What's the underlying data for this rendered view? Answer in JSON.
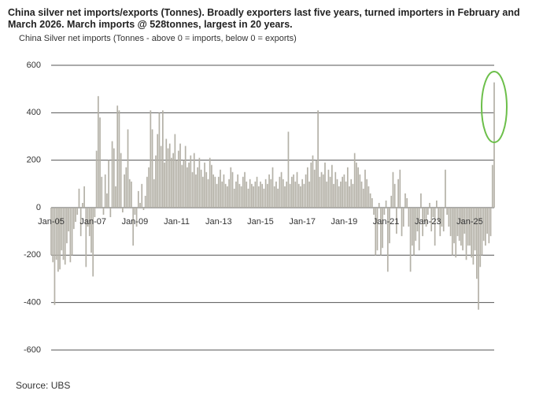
{
  "chart_data": {
    "type": "bar",
    "title": "China silver net imports/exports (Tonnes). Broadly exporters last five years, turned importers in February and March 2026. March imports @ 528tonnes, largest in 20 years.",
    "subtitle": "China Silver net imports (Tonnes - above 0 = imports, below 0 = exports)",
    "source": "Source: UBS",
    "color": "#b4b1a7",
    "grid": true,
    "ylim": [
      -600,
      600
    ],
    "yticks": [
      -600,
      -400,
      -200,
      0,
      200,
      400,
      600
    ],
    "categories": [
      "Jan-05",
      null,
      null,
      null,
      null,
      null,
      null,
      null,
      null,
      null,
      null,
      null,
      null,
      null,
      null,
      null,
      null,
      null,
      null,
      null,
      null,
      null,
      null,
      null,
      "Jan-07",
      null,
      null,
      null,
      null,
      null,
      null,
      null,
      null,
      null,
      null,
      null,
      null,
      null,
      null,
      null,
      null,
      null,
      null,
      null,
      null,
      null,
      null,
      null,
      "Jan-09",
      null,
      null,
      null,
      null,
      null,
      null,
      null,
      null,
      null,
      null,
      null,
      null,
      null,
      null,
      null,
      null,
      null,
      null,
      null,
      null,
      null,
      null,
      null,
      "Jan-11",
      null,
      null,
      null,
      null,
      null,
      null,
      null,
      null,
      null,
      null,
      null,
      null,
      null,
      null,
      null,
      null,
      null,
      null,
      null,
      null,
      null,
      null,
      null,
      "Jan-13",
      null,
      null,
      null,
      null,
      null,
      null,
      null,
      null,
      null,
      null,
      null,
      null,
      null,
      null,
      null,
      null,
      null,
      null,
      null,
      null,
      null,
      null,
      null,
      "Jan-15",
      null,
      null,
      null,
      null,
      null,
      null,
      null,
      null,
      null,
      null,
      null,
      null,
      null,
      null,
      null,
      null,
      null,
      null,
      null,
      null,
      null,
      null,
      null,
      "Jan-17",
      null,
      null,
      null,
      null,
      null,
      null,
      null,
      null,
      null,
      null,
      null,
      null,
      null,
      null,
      null,
      null,
      null,
      null,
      null,
      null,
      null,
      null,
      null,
      "Jan-19",
      null,
      null,
      null,
      null,
      null,
      null,
      null,
      null,
      null,
      null,
      null,
      null,
      null,
      null,
      null,
      null,
      null,
      null,
      null,
      null,
      null,
      null,
      null,
      "Jan-21",
      null,
      null,
      null,
      null,
      null,
      null,
      null,
      null,
      null,
      null,
      null,
      null,
      null,
      null,
      null,
      null,
      null,
      null,
      null,
      null,
      null,
      null,
      null,
      "Jan-23",
      null,
      null,
      null,
      null,
      null,
      null,
      null,
      null,
      null,
      null,
      null,
      null,
      null,
      null,
      null,
      null,
      null,
      null,
      null,
      null,
      null,
      null,
      null,
      "Jan-25",
      null,
      null,
      null,
      null,
      null,
      null,
      null,
      null,
      null,
      null,
      null,
      null,
      null,
      null
    ],
    "values": [
      -200,
      -230,
      -410,
      -220,
      -270,
      -260,
      -180,
      -220,
      -240,
      -150,
      -100,
      -230,
      -200,
      -90,
      -60,
      -30,
      80,
      -120,
      20,
      90,
      -250,
      -80,
      -120,
      -190,
      -290,
      -40,
      240,
      470,
      380,
      130,
      -30,
      140,
      60,
      200,
      -40,
      280,
      250,
      90,
      430,
      410,
      230,
      -20,
      140,
      170,
      330,
      120,
      110,
      -160,
      -30,
      -80,
      70,
      20,
      100,
      -10,
      50,
      130,
      170,
      410,
      330,
      120,
      220,
      310,
      400,
      260,
      410,
      190,
      290,
      250,
      270,
      210,
      230,
      310,
      200,
      240,
      270,
      180,
      200,
      260,
      170,
      190,
      220,
      150,
      230,
      140,
      170,
      210,
      160,
      130,
      190,
      150,
      120,
      210,
      180,
      140,
      130,
      100,
      130,
      160,
      110,
      140,
      100,
      90,
      120,
      170,
      150,
      80,
      110,
      140,
      100,
      90,
      130,
      150,
      110,
      80,
      120,
      100,
      90,
      110,
      130,
      90,
      110,
      100,
      80,
      120,
      100,
      140,
      120,
      170,
      90,
      110,
      80,
      130,
      150,
      120,
      90,
      110,
      320,
      100,
      130,
      140,
      110,
      150,
      100,
      90,
      120,
      100,
      140,
      170,
      110,
      190,
      220,
      160,
      200,
      410,
      130,
      150,
      140,
      190,
      110,
      160,
      130,
      180,
      100,
      150,
      120,
      90,
      110,
      130,
      140,
      110,
      170,
      90,
      120,
      100,
      230,
      190,
      170,
      140,
      110,
      80,
      160,
      120,
      90,
      60,
      40,
      -30,
      -200,
      -180,
      20,
      -200,
      -170,
      -30,
      30,
      -270,
      -150,
      50,
      150,
      100,
      -110,
      120,
      160,
      -120,
      -80,
      60,
      40,
      -80,
      -270,
      -160,
      -200,
      -140,
      -100,
      -180,
      60,
      -120,
      -60,
      -80,
      -30,
      20,
      -100,
      -40,
      -160,
      30,
      -60,
      -120,
      -80,
      -100,
      160,
      -30,
      -80,
      -120,
      -200,
      -150,
      -210,
      -120,
      -140,
      -160,
      -180,
      -110,
      -220,
      -160,
      -160,
      -210,
      -240,
      -180,
      -300,
      -430,
      -250,
      -200,
      -140,
      -160,
      -110,
      -150,
      -120,
      180,
      528
    ]
  }
}
